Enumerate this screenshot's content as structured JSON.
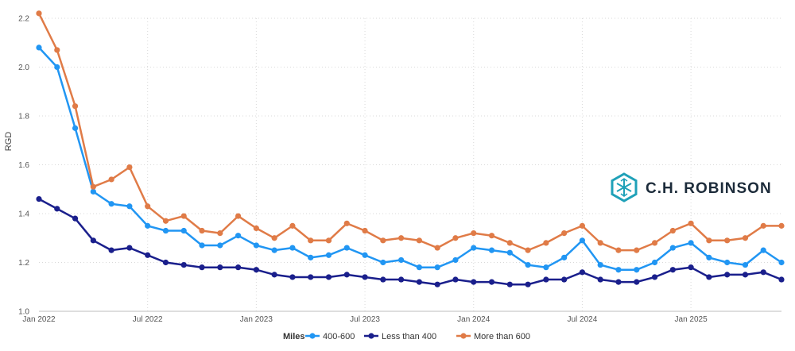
{
  "chart_data": {
    "type": "line",
    "title": "",
    "xlabel": "",
    "ylabel": "RGD",
    "ylim": [
      1.0,
      2.2
    ],
    "yticks": [
      "1.0",
      "1.2",
      "1.4",
      "1.6",
      "1.8",
      "2.0",
      "2.2"
    ],
    "grid": true,
    "x": [
      "2022-01",
      "2022-02",
      "2022-03",
      "2022-04",
      "2022-05",
      "2022-06",
      "2022-07",
      "2022-08",
      "2022-09",
      "2022-10",
      "2022-11",
      "2022-12",
      "2023-01",
      "2023-02",
      "2023-03",
      "2023-04",
      "2023-05",
      "2023-06",
      "2023-07",
      "2023-08",
      "2023-09",
      "2023-10",
      "2023-11",
      "2023-12",
      "2024-01",
      "2024-02",
      "2024-03",
      "2024-04",
      "2024-05",
      "2024-06",
      "2024-07",
      "2024-08",
      "2024-09",
      "2024-10",
      "2024-11",
      "2024-12",
      "2025-01",
      "2025-02",
      "2025-03",
      "2025-04",
      "2025-05",
      "2025-06"
    ],
    "xticks": [
      {
        "index": 0,
        "label": "Jan 2022"
      },
      {
        "index": 6,
        "label": "Jul 2022"
      },
      {
        "index": 12,
        "label": "Jan 2023"
      },
      {
        "index": 18,
        "label": "Jul 2023"
      },
      {
        "index": 24,
        "label": "Jan 2024"
      },
      {
        "index": 30,
        "label": "Jul 2024"
      },
      {
        "index": 36,
        "label": "Jan 2025"
      }
    ],
    "legend_title": "Miles",
    "legend_position": "bottom-center",
    "series": [
      {
        "name": "400-600",
        "color": "#2196f3",
        "values": [
          2.08,
          2.0,
          1.75,
          1.49,
          1.44,
          1.43,
          1.35,
          1.33,
          1.33,
          1.27,
          1.27,
          1.31,
          1.27,
          1.25,
          1.26,
          1.22,
          1.23,
          1.26,
          1.23,
          1.2,
          1.21,
          1.18,
          1.18,
          1.21,
          1.26,
          1.25,
          1.24,
          1.19,
          1.18,
          1.22,
          1.29,
          1.19,
          1.17,
          1.17,
          1.2,
          1.26,
          1.28,
          1.22,
          1.2,
          1.19,
          1.25,
          1.2
        ]
      },
      {
        "name": "Less than 400",
        "color": "#1a1f8c",
        "values": [
          1.46,
          1.42,
          1.38,
          1.29,
          1.25,
          1.26,
          1.23,
          1.2,
          1.19,
          1.18,
          1.18,
          1.18,
          1.17,
          1.15,
          1.14,
          1.14,
          1.14,
          1.15,
          1.14,
          1.13,
          1.13,
          1.12,
          1.11,
          1.13,
          1.12,
          1.12,
          1.11,
          1.11,
          1.13,
          1.13,
          1.16,
          1.13,
          1.12,
          1.12,
          1.14,
          1.17,
          1.18,
          1.14,
          1.15,
          1.15,
          1.16,
          1.13
        ]
      },
      {
        "name": "More than 600",
        "color": "#e07b47",
        "values": [
          2.22,
          2.07,
          1.84,
          1.51,
          1.54,
          1.59,
          1.43,
          1.37,
          1.39,
          1.33,
          1.32,
          1.39,
          1.34,
          1.3,
          1.35,
          1.29,
          1.29,
          1.36,
          1.33,
          1.29,
          1.3,
          1.29,
          1.26,
          1.3,
          1.32,
          1.31,
          1.28,
          1.25,
          1.28,
          1.32,
          1.35,
          1.28,
          1.25,
          1.25,
          1.28,
          1.33,
          1.36,
          1.29,
          1.29,
          1.3,
          1.35,
          1.35
        ]
      }
    ]
  },
  "logo": {
    "text": "C.H. ROBINSON",
    "icon": "ch-robinson-logo-icon",
    "color": "#1fa1b8"
  }
}
